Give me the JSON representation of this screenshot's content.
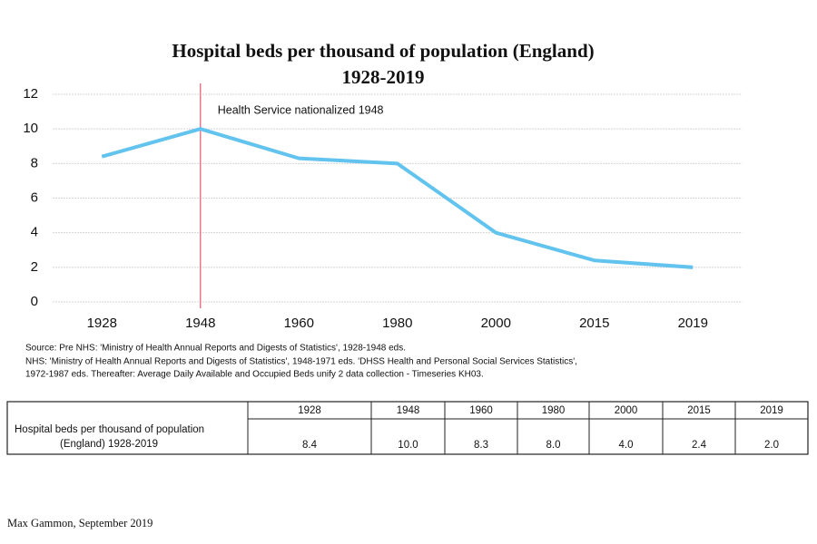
{
  "chart_data": {
    "type": "line",
    "title": [
      "Hospital beds per thousand of population (England)",
      "1928-2019"
    ],
    "categories": [
      "1928",
      "1948",
      "1960",
      "1980",
      "2000",
      "2015",
      "2019"
    ],
    "series": [
      {
        "name": "Hospital beds per thousand of population (England) 1928-2019",
        "color": "#62c3ee",
        "values": [
          8.4,
          10.0,
          8.3,
          8.0,
          4.0,
          2.4,
          2.0
        ],
        "value_labels": [
          "8.4",
          "10.0",
          "8.3",
          "8.0",
          "4.0",
          "2.4",
          "2.0"
        ]
      }
    ],
    "ylim": [
      0,
      12
    ],
    "yticks": [
      0,
      2,
      4,
      6,
      8,
      10,
      12
    ],
    "grid": true,
    "annotation": {
      "text": "Health Service nationalized 1948",
      "x": "1948",
      "color": "#e8788a"
    }
  },
  "source": [
    "Source: Pre NHS: 'Ministry of Health Annual Reports and Digests of Statistics', 1928-1948 eds.",
    "NHS: 'Ministry of Health Annual Reports and Digests of Statistics', 1948-1971 eds. 'DHSS Health and Personal Social Services Statistics',",
    "1972-1987 eds. Thereafter: Average Daily Available and Occupied Beds unify 2 data collection - Timeseries KH03."
  ],
  "table": {
    "row_label": [
      "Hospital beds per thousand of population",
      "(England) 1928-2019"
    ]
  },
  "author": "Max Gammon, September 2019"
}
